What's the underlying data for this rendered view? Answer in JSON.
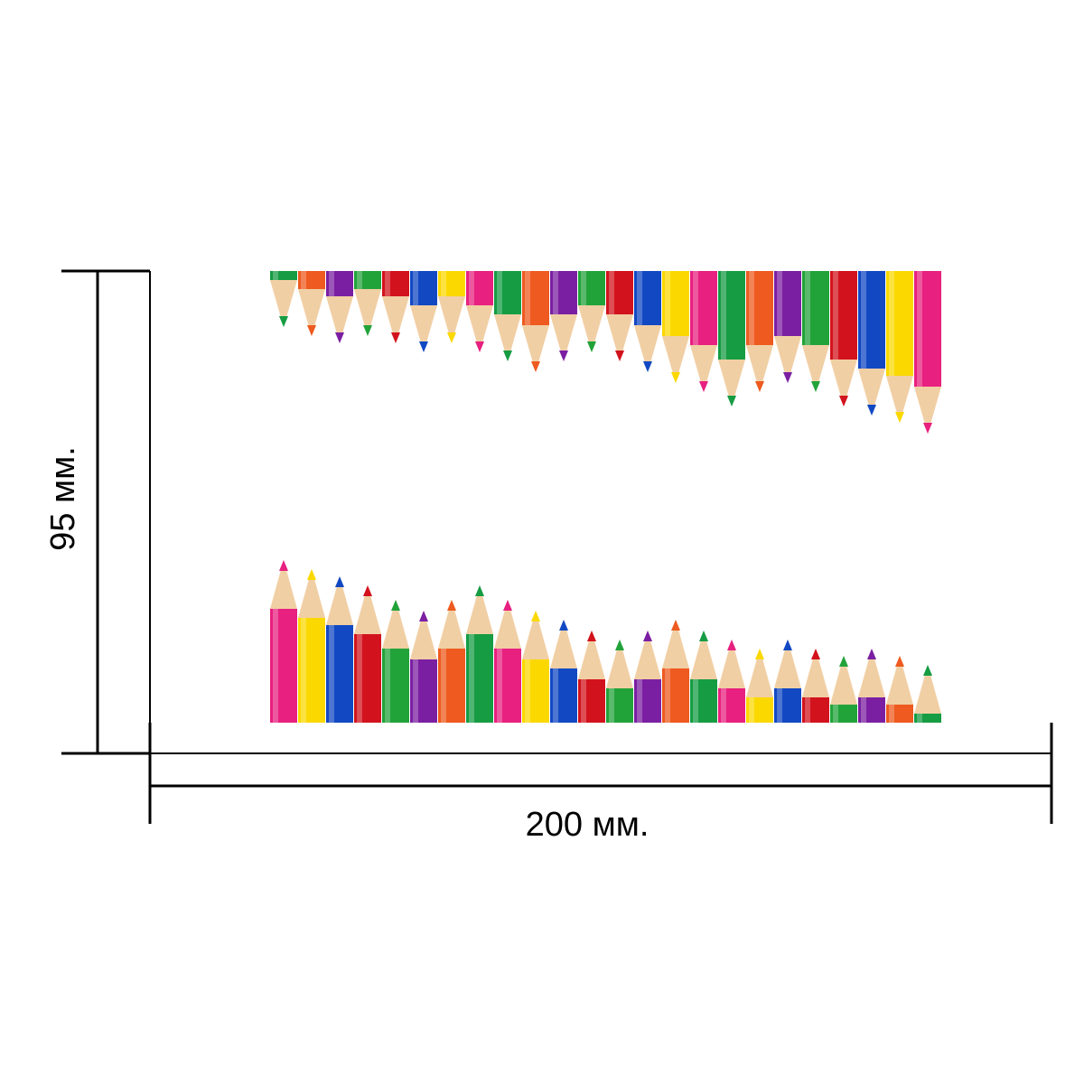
{
  "dimensions": {
    "height_label": "95 мм.",
    "width_label": "200 мм."
  },
  "colors": {
    "line": "#000000",
    "wood": "#f1cfa4",
    "palette": [
      "#e8207f",
      "#fbd800",
      "#1249c3",
      "#d2131d",
      "#22a33a",
      "#7b1fa2",
      "#ee5a1f",
      "#169c43"
    ]
  },
  "top_row": {
    "description_icon": "pencils-pointing-down",
    "colors": [
      "#169c43",
      "#ee5a1f",
      "#7b1fa2",
      "#22a33a",
      "#d2131d",
      "#1249c3",
      "#fbd800",
      "#e8207f",
      "#169c43",
      "#ee5a1f",
      "#7b1fa2",
      "#22a33a",
      "#d2131d",
      "#1249c3",
      "#fbd800",
      "#e8207f",
      "#169c43",
      "#ee5a1f",
      "#7b1fa2",
      "#22a33a",
      "#d2131d",
      "#1249c3",
      "#fbd800",
      "#e8207f"
    ]
  },
  "bottom_row": {
    "description_icon": "pencils-pointing-up",
    "colors": [
      "#e8207f",
      "#fbd800",
      "#1249c3",
      "#d2131d",
      "#22a33a",
      "#7b1fa2",
      "#ee5a1f",
      "#169c43",
      "#e8207f",
      "#fbd800",
      "#1249c3",
      "#d2131d",
      "#22a33a",
      "#7b1fa2",
      "#ee5a1f",
      "#169c43",
      "#e8207f",
      "#fbd800",
      "#1249c3",
      "#d2131d",
      "#22a33a",
      "#7b1fa2",
      "#ee5a1f",
      "#169c43"
    ]
  }
}
